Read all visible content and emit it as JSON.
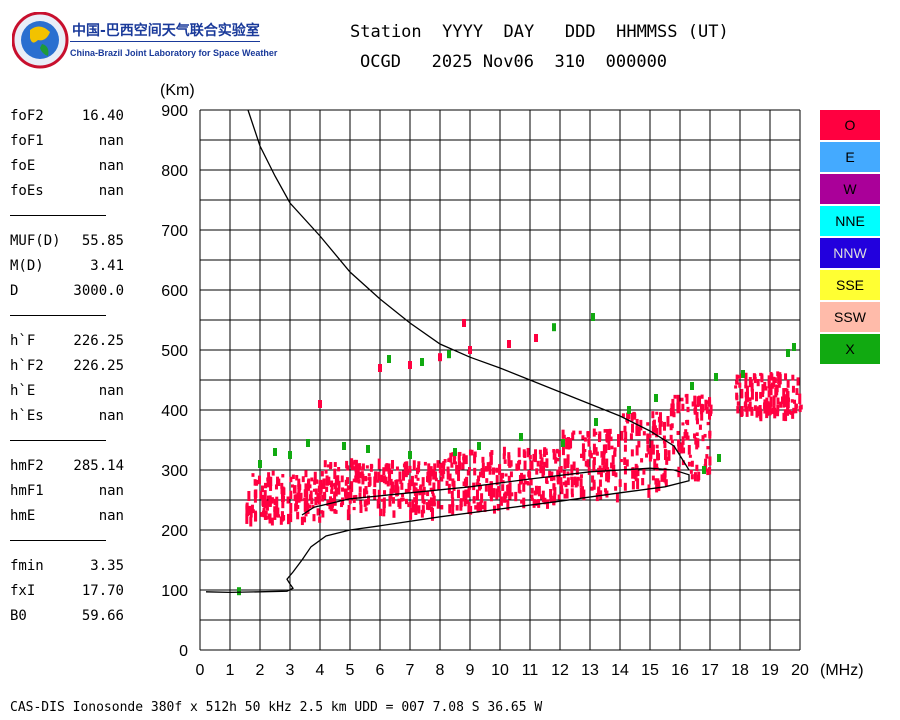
{
  "logo": {
    "cn": "中国-巴西空间天气联合实验室",
    "en": "China-Brazil Joint Laboratory for Space Weather"
  },
  "header": {
    "labels": "Station  YYYY  DAY   DDD  HHMMSS (UT)",
    "values": "OCGD   2025 Nov06  310  000000"
  },
  "params": [
    {
      "name": "foF2",
      "value": "16.40"
    },
    {
      "name": "foF1",
      "value": "nan"
    },
    {
      "name": "foE",
      "value": "nan"
    },
    {
      "name": "foEs",
      "value": "nan"
    },
    {
      "sep": true
    },
    {
      "name": "MUF(D)",
      "value": "55.85"
    },
    {
      "name": "M(D)",
      "value": "3.41"
    },
    {
      "name": "D",
      "value": "3000.0"
    },
    {
      "sep": true
    },
    {
      "name": "h`F",
      "value": "226.25"
    },
    {
      "name": "h`F2",
      "value": "226.25"
    },
    {
      "name": "h`E",
      "value": "nan"
    },
    {
      "name": "h`Es",
      "value": "nan"
    },
    {
      "sep": true
    },
    {
      "name": "hmF2",
      "value": "285.14"
    },
    {
      "name": "hmF1",
      "value": "nan"
    },
    {
      "name": "hmE",
      "value": "nan"
    },
    {
      "sep": true
    },
    {
      "name": "fmin",
      "value": "3.35"
    },
    {
      "name": "fxI",
      "value": "17.70"
    },
    {
      "name": "B0",
      "value": "59.66"
    }
  ],
  "legend": [
    {
      "label": "O",
      "color": "#ff0040"
    },
    {
      "label": "E",
      "color": "#44aaff"
    },
    {
      "label": "W",
      "color": "#aa0099"
    },
    {
      "label": "NNE",
      "color": "#00ffff"
    },
    {
      "label": "NNW",
      "color": "#2200dd"
    },
    {
      "label": "SSE",
      "color": "#ffff33"
    },
    {
      "label": "SSW",
      "color": "#ffbbaa"
    },
    {
      "label": "X",
      "color": "#11aa11"
    }
  ],
  "footer": "CAS-DIS Ionosonde 380f x 512h 50 kHz 2.5 km UDD = 007 7.08 S 36.65 W",
  "chart_data": {
    "type": "scatter",
    "xlabel": "(MHz)",
    "ylabel": "(Km)",
    "xlim": [
      0,
      20
    ],
    "ylim": [
      0,
      900
    ],
    "xticks": [
      0,
      1,
      2,
      3,
      4,
      5,
      6,
      7,
      8,
      9,
      10,
      11,
      12,
      13,
      14,
      15,
      16,
      17,
      18,
      19,
      20
    ],
    "yticks": [
      0,
      100,
      200,
      300,
      400,
      500,
      600,
      700,
      800,
      900
    ],
    "grid": true,
    "legend_position": "right",
    "series": [
      {
        "name": "O",
        "color": "#ff0040",
        "regions": [
          {
            "x": [
              1.5,
              4
            ],
            "y": [
              220,
              300
            ]
          },
          {
            "x": [
              4,
              8
            ],
            "y": [
              232,
              320
            ]
          },
          {
            "x": [
              8,
              10
            ],
            "y": [
              240,
              335
            ]
          },
          {
            "x": [
              10,
              12
            ],
            "y": [
              250,
              340
            ]
          },
          {
            "x": [
              12,
              14
            ],
            "y": [
              260,
              370
            ]
          },
          {
            "x": [
              14,
              15.5
            ],
            "y": [
              270,
              400
            ]
          },
          {
            "x": [
              15.5,
              17
            ],
            "y": [
              290,
              430
            ]
          },
          {
            "x": [
              17.8,
              20
            ],
            "y": [
              395,
              465
            ]
          }
        ],
        "points": [
          [
            6.0,
            470
          ],
          [
            7.0,
            475
          ],
          [
            8.0,
            488
          ],
          [
            9.0,
            500
          ],
          [
            10.3,
            510
          ],
          [
            11.2,
            520
          ],
          [
            8.8,
            545
          ],
          [
            4.0,
            410
          ]
        ]
      },
      {
        "name": "X",
        "color": "#11aa11",
        "points": [
          [
            2.5,
            330
          ],
          [
            3.0,
            325
          ],
          [
            4.8,
            340
          ],
          [
            5.6,
            335
          ],
          [
            7.0,
            325
          ],
          [
            8.5,
            330
          ],
          [
            9.3,
            340
          ],
          [
            10.7,
            355
          ],
          [
            12.1,
            345
          ],
          [
            13.2,
            380
          ],
          [
            14.3,
            400
          ],
          [
            15.2,
            420
          ],
          [
            16.4,
            440
          ],
          [
            17.2,
            455
          ],
          [
            18.1,
            460
          ],
          [
            19.6,
            495
          ],
          [
            19.8,
            505
          ],
          [
            13.1,
            555
          ],
          [
            11.8,
            538
          ],
          [
            8.3,
            493
          ],
          [
            7.4,
            480
          ],
          [
            6.3,
            485
          ],
          [
            16.8,
            300
          ],
          [
            17.3,
            320
          ],
          [
            1.3,
            98
          ],
          [
            2.0,
            310
          ],
          [
            3.6,
            345
          ]
        ]
      }
    ],
    "trace_lower": [
      [
        0.2,
        97
      ],
      [
        1.0,
        96
      ],
      [
        2.0,
        97
      ],
      [
        2.9,
        98
      ],
      [
        3.1,
        103
      ],
      [
        3.0,
        110
      ],
      [
        2.9,
        118
      ],
      [
        3.1,
        130
      ],
      [
        3.4,
        150
      ],
      [
        3.7,
        172
      ],
      [
        4.2,
        190
      ],
      [
        5.0,
        200
      ],
      [
        6.0,
        207
      ],
      [
        8.0,
        222
      ],
      [
        10.0,
        235
      ],
      [
        12.0,
        248
      ],
      [
        14.0,
        262
      ],
      [
        15.5,
        272
      ],
      [
        16.3,
        282
      ],
      [
        16.3,
        292
      ],
      [
        15.8,
        300
      ],
      [
        15.0,
        303
      ],
      [
        13.0,
        297
      ],
      [
        11.0,
        285
      ],
      [
        9.0,
        272
      ],
      [
        7.0,
        262
      ],
      [
        5.0,
        252
      ],
      [
        3.8,
        238
      ],
      [
        3.4,
        225
      ]
    ],
    "trace_upper": [
      [
        1.6,
        900
      ],
      [
        2.0,
        840
      ],
      [
        2.5,
        790
      ],
      [
        3.0,
        745
      ],
      [
        4.0,
        690
      ],
      [
        5.0,
        630
      ],
      [
        6.0,
        585
      ],
      [
        7.0,
        545
      ],
      [
        8.0,
        510
      ],
      [
        9.0,
        488
      ],
      [
        10.0,
        470
      ],
      [
        11.0,
        450
      ],
      [
        12.0,
        430
      ],
      [
        13.0,
        410
      ],
      [
        14.0,
        390
      ],
      [
        15.0,
        365
      ],
      [
        15.8,
        340
      ],
      [
        16.3,
        300
      ]
    ]
  }
}
